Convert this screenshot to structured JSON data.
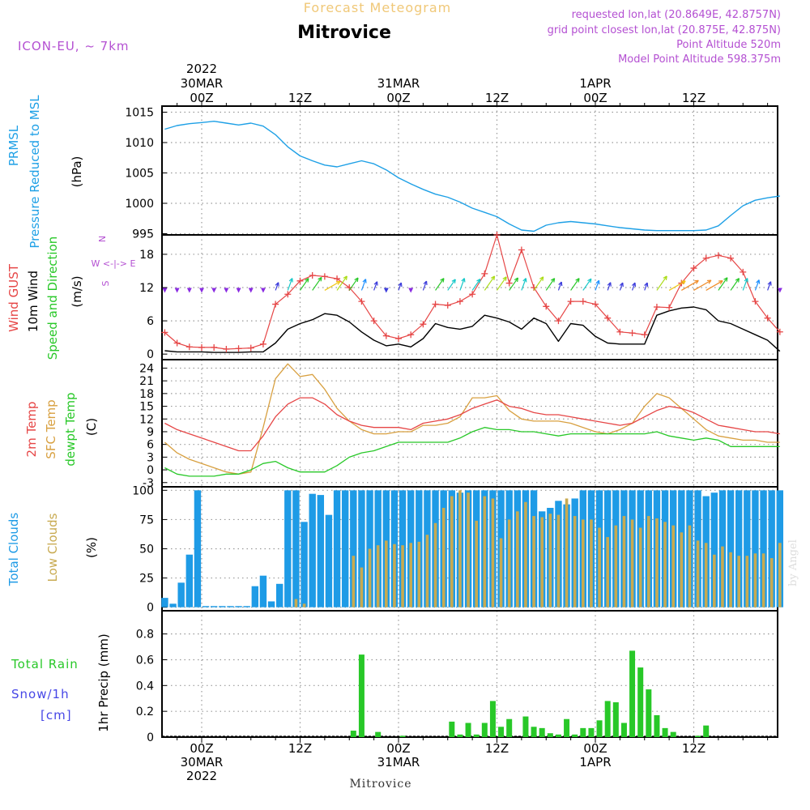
{
  "header": {
    "top_title": "Forecast Meteogram",
    "station": "Mitrovice",
    "model": "ICON-EU, ~ 7km",
    "requested": "requested lon,lat (20.8649E, 42.8757N)",
    "grid_point": "grid point closest lon,lat (20.875E, 42.875N)",
    "point_altitude": "Point Altitude 520m",
    "model_altitude": "Model Point Altitude 598.375m",
    "footer": "Mitrovice",
    "credit": "by Angel"
  },
  "time_axis": {
    "top_labels": [
      {
        "hour": 0,
        "lines": [
          "2022",
          "30MAR",
          "00Z"
        ]
      },
      {
        "hour": 12,
        "lines": [
          "12Z"
        ]
      },
      {
        "hour": 24,
        "lines": [
          "31MAR",
          "00Z"
        ]
      },
      {
        "hour": 36,
        "lines": [
          "12Z"
        ]
      },
      {
        "hour": 48,
        "lines": [
          "1APR",
          "00Z"
        ]
      },
      {
        "hour": 60,
        "lines": [
          "12Z"
        ]
      }
    ],
    "bottom_labels": [
      {
        "hour": 0,
        "lines": [
          "00Z",
          "30MAR",
          "2022"
        ]
      },
      {
        "hour": 12,
        "lines": [
          "12Z"
        ]
      },
      {
        "hour": 24,
        "lines": [
          "00Z",
          "31MAR"
        ]
      },
      {
        "hour": 36,
        "lines": [
          "12Z"
        ]
      },
      {
        "hour": 48,
        "lines": [
          "00Z",
          "1APR"
        ]
      },
      {
        "hour": 60,
        "lines": [
          "12Z"
        ]
      }
    ]
  },
  "panels": {
    "pressure": {
      "ylabels": [
        "PRMSL",
        "Pressure Reduced to MSL"
      ],
      "unit": "(hPa)"
    },
    "wind": {
      "ylabels": [
        "Wind GUST",
        "10m Wind",
        "Speed and Direction"
      ],
      "unit": "(m/s)",
      "compass": [
        "N",
        "W <-|-> E",
        "S"
      ]
    },
    "temp": {
      "ylabels": [
        "2m Temp",
        "SFC Temp",
        "dewpt Temp"
      ],
      "unit": "(C)"
    },
    "cloud": {
      "ylabels": [
        "Total Clouds",
        "Low Clouds"
      ],
      "unit": "(%)"
    },
    "precip": {
      "legend": [
        "Total  Rain",
        "Snow/1h",
        "[cm]"
      ],
      "ylabel": "1hr Precip (mm)"
    }
  },
  "colors": {
    "pressure": "#1ea0e6",
    "gust": "#e64646",
    "wind": "#000000",
    "temp": "#e64646",
    "sfc": "#d8a040",
    "dewpt": "#28c828",
    "total_cloud": "#1e9be6",
    "low_cloud": "#c8aa50",
    "rain": "#28c828",
    "snow": "#4646e6",
    "title": "#f0c878",
    "meta": "#b450d2"
  },
  "chart_data": [
    {
      "type": "line",
      "name": "pressure",
      "x_hours": [
        -4.5,
        -3,
        -1.5,
        0,
        1.5,
        3,
        4.5,
        6,
        7.5,
        9,
        10.5,
        12,
        13.5,
        15,
        16.5,
        18,
        19.5,
        21,
        22.5,
        24,
        25.5,
        27,
        28.5,
        30,
        31.5,
        33,
        34.5,
        36,
        37.5,
        39,
        40.5,
        42,
        43.5,
        45,
        46.5,
        48,
        49.5,
        51,
        52.5,
        54,
        55.5,
        57,
        58.5,
        60,
        61.5,
        63,
        64.5,
        66,
        67.5,
        69,
        70.5
      ],
      "series": [
        {
          "name": "PRMSL",
          "values": [
            1012.2,
            1012.8,
            1013.1,
            1013.3,
            1013.5,
            1013.2,
            1012.9,
            1013.2,
            1012.7,
            1011.3,
            1009.3,
            1007.8,
            1007.0,
            1006.3,
            1006.0,
            1006.5,
            1007.0,
            1006.5,
            1005.5,
            1004.2,
            1003.2,
            1002.3,
            1001.5,
            1001.0,
            1000.2,
            999.2,
            998.5,
            997.8,
            996.6,
            995.6,
            995.4,
            996.4,
            996.8,
            997.0,
            996.8,
            996.6,
            996.3,
            996.0,
            995.8,
            995.6,
            995.5,
            995.5,
            995.5,
            995.5,
            995.6,
            996.3,
            998.0,
            999.6,
            1000.5,
            1000.9,
            1001.2
          ]
        }
      ],
      "ylim": [
        994.8,
        1016
      ],
      "yticks": [
        995,
        1000,
        1005,
        1010,
        1015
      ]
    },
    {
      "type": "line",
      "name": "wind",
      "x_hours": [
        -4.5,
        -3,
        -1.5,
        0,
        1.5,
        3,
        4.5,
        6,
        7.5,
        9,
        10.5,
        12,
        13.5,
        15,
        16.5,
        18,
        19.5,
        21,
        22.5,
        24,
        25.5,
        27,
        28.5,
        30,
        31.5,
        33,
        34.5,
        36,
        37.5,
        39,
        40.5,
        42,
        43.5,
        45,
        46.5,
        48,
        49.5,
        51,
        52.5,
        54,
        55.5,
        57,
        58.5,
        60,
        61.5,
        63,
        64.5,
        66,
        67.5,
        69,
        70.5
      ],
      "series": [
        {
          "name": "Wind GUST",
          "values": [
            3.9,
            2.0,
            1.3,
            1.2,
            1.2,
            0.9,
            1.0,
            1.1,
            1.8,
            9.0,
            10.8,
            13.2,
            14.2,
            14.0,
            13.6,
            12.0,
            9.5,
            6.0,
            3.3,
            2.8,
            3.5,
            5.4,
            9.0,
            8.8,
            9.5,
            10.8,
            14.5,
            21.5,
            12.8,
            18.8,
            12.0,
            8.6,
            6.0,
            9.5,
            9.5,
            9.0,
            6.5,
            4.0,
            3.8,
            3.5,
            8.5,
            8.4,
            12.8,
            15.5,
            17.3,
            17.8,
            17.3,
            14.8,
            9.5,
            6.5,
            4.0
          ]
        },
        {
          "name": "10m Wind",
          "values": [
            0.6,
            0.4,
            0.4,
            0.4,
            0.3,
            0.3,
            0.3,
            0.4,
            0.4,
            2.0,
            4.5,
            5.5,
            6.2,
            7.3,
            7.0,
            5.8,
            4.0,
            2.5,
            1.5,
            1.8,
            1.3,
            2.8,
            5.5,
            4.8,
            4.5,
            5.0,
            7.0,
            6.5,
            5.8,
            4.5,
            6.5,
            5.5,
            2.3,
            5.5,
            5.2,
            3.2,
            2.0,
            1.8,
            1.8,
            1.8,
            7.0,
            7.8,
            8.3,
            8.5,
            8.0,
            6.0,
            5.5,
            4.5,
            3.5,
            2.5,
            0.5
          ]
        }
      ],
      "ylim": [
        -1,
        21.5
      ],
      "yticks": [
        0,
        6,
        12,
        18
      ]
    },
    {
      "type": "line",
      "name": "temperature",
      "x_hours": [
        -4.5,
        -3,
        -1.5,
        0,
        1.5,
        3,
        4.5,
        6,
        7.5,
        9,
        10.5,
        12,
        13.5,
        15,
        16.5,
        18,
        19.5,
        21,
        22.5,
        24,
        25.5,
        27,
        28.5,
        30,
        31.5,
        33,
        34.5,
        36,
        37.5,
        39,
        40.5,
        42,
        43.5,
        45,
        46.5,
        48,
        49.5,
        51,
        52.5,
        54,
        55.5,
        57,
        58.5,
        60,
        61.5,
        63,
        64.5,
        66,
        67.5,
        69,
        70.5
      ],
      "series": [
        {
          "name": "2m Temp",
          "values": [
            11.0,
            9.5,
            8.5,
            7.5,
            6.5,
            5.5,
            4.5,
            4.5,
            8.0,
            12.5,
            15.5,
            17.0,
            17.0,
            15.5,
            13.0,
            11.5,
            10.5,
            10.0,
            10.0,
            10.0,
            9.5,
            11.0,
            11.5,
            12.0,
            13.0,
            14.5,
            15.5,
            16.5,
            15.0,
            14.5,
            13.5,
            13.0,
            13.0,
            12.5,
            12.0,
            11.5,
            11.0,
            10.5,
            11.0,
            12.5,
            14.0,
            15.0,
            14.5,
            13.5,
            12.0,
            10.5,
            10.0,
            9.5,
            9.0,
            9.0,
            8.5
          ]
        },
        {
          "name": "SFC Temp",
          "values": [
            6.5,
            4.0,
            2.5,
            1.5,
            0.5,
            -0.5,
            -1.0,
            -0.5,
            10.0,
            21.5,
            25.0,
            22.0,
            22.5,
            19.0,
            14.5,
            11.5,
            9.5,
            8.5,
            8.5,
            9.0,
            9.0,
            10.5,
            10.5,
            11.0,
            12.5,
            17.0,
            17.0,
            17.5,
            14.0,
            12.0,
            11.5,
            11.5,
            11.5,
            11.0,
            10.0,
            9.0,
            8.5,
            9.5,
            11.0,
            15.0,
            18.0,
            17.0,
            14.5,
            12.0,
            9.5,
            8.0,
            7.5,
            7.0,
            7.0,
            6.5,
            6.5
          ]
        },
        {
          "name": "dewpt Temp",
          "values": [
            0.5,
            -1.0,
            -1.5,
            -1.5,
            -1.5,
            -1.0,
            -1.0,
            0.0,
            1.5,
            2.0,
            0.5,
            -0.5,
            -0.5,
            -0.5,
            1.0,
            3.0,
            4.0,
            4.5,
            5.5,
            6.5,
            6.5,
            6.5,
            6.5,
            6.5,
            7.5,
            9.0,
            10.0,
            9.5,
            9.5,
            9.0,
            9.0,
            8.5,
            8.0,
            8.5,
            8.5,
            8.5,
            8.5,
            8.5,
            8.5,
            8.5,
            9.0,
            8.0,
            7.5,
            7.0,
            7.5,
            7.0,
            5.5,
            5.5,
            5.5,
            5.5,
            5.5
          ]
        }
      ],
      "ylim": [
        -4,
        26
      ],
      "yticks": [
        -3,
        0,
        3,
        6,
        9,
        12,
        15,
        18,
        21,
        24
      ]
    },
    {
      "type": "bar",
      "name": "clouds",
      "x_hours": [
        -4.5,
        -3.5,
        -2.5,
        -1.5,
        -0.5,
        0.5,
        1.5,
        2.5,
        3.5,
        4.5,
        5.5,
        6.5,
        7.5,
        8.5,
        9.5,
        10.5,
        11.5,
        12.5,
        13.5,
        14.5,
        15.5,
        16.5,
        17.5,
        18.5,
        19.5,
        20.5,
        21.5,
        22.5,
        23.5,
        24.5,
        25.5,
        26.5,
        27.5,
        28.5,
        29.5,
        30.5,
        31.5,
        32.5,
        33.5,
        34.5,
        35.5,
        36.5,
        37.5,
        38.5,
        39.5,
        40.5,
        41.5,
        42.5,
        43.5,
        44.5,
        45.5,
        46.5,
        47.5,
        48.5,
        49.5,
        50.5,
        51.5,
        52.5,
        53.5,
        54.5,
        55.5,
        56.5,
        57.5,
        58.5,
        59.5,
        60.5,
        61.5,
        62.5,
        63.5,
        64.5,
        65.5,
        66.5,
        67.5,
        68.5,
        69.5,
        70.5
      ],
      "series": [
        {
          "name": "Total Clouds",
          "values": [
            8,
            3,
            21,
            45,
            100,
            1,
            1,
            1,
            1,
            1,
            1,
            18,
            27,
            5,
            20,
            100,
            100,
            73,
            97,
            96,
            79,
            100,
            100,
            100,
            100,
            100,
            100,
            100,
            100,
            100,
            100,
            100,
            100,
            100,
            100,
            100,
            98,
            100,
            100,
            100,
            100,
            100,
            100,
            100,
            100,
            100,
            82,
            85,
            91,
            88,
            93,
            100,
            100,
            100,
            100,
            100,
            100,
            100,
            100,
            100,
            100,
            100,
            100,
            100,
            100,
            100,
            95,
            98,
            100,
            100,
            100,
            100,
            100,
            100,
            100,
            100
          ]
        },
        {
          "name": "Low Clouds",
          "values": [
            0,
            0,
            0,
            0,
            0,
            0,
            0,
            0,
            0,
            0,
            0,
            0,
            0,
            0,
            0,
            0,
            7,
            3,
            0,
            0,
            0,
            0,
            0,
            44,
            34,
            50,
            53,
            57,
            54,
            53,
            55,
            56,
            62,
            72,
            85,
            95,
            100,
            98,
            74,
            95,
            93,
            59,
            75,
            82,
            90,
            78,
            77,
            80,
            79,
            93,
            78,
            75,
            75,
            68,
            60,
            70,
            78,
            75,
            68,
            78,
            76,
            73,
            70,
            64,
            70,
            57,
            55,
            45,
            52,
            47,
            44,
            44,
            46,
            46,
            42,
            55
          ]
        }
      ],
      "ylim": [
        -3,
        103
      ],
      "yticks": [
        0,
        25,
        50,
        75,
        100
      ]
    },
    {
      "type": "bar",
      "name": "precipitation",
      "x_hours": [
        13.5,
        14.5,
        15.5,
        16.5,
        17.5,
        18.5,
        19.5,
        20.5,
        21.5,
        22.5,
        23.5,
        24.5,
        25.5,
        26.5,
        27.5,
        28.5,
        29.5,
        30.5,
        31.5,
        32.5,
        33.5,
        34.5,
        35.5,
        36.5,
        37.5,
        38.5,
        39.5,
        40.5,
        41.5,
        42.5,
        43.5,
        44.5,
        45.5,
        46.5,
        47.5,
        48.5,
        49.5,
        50.5,
        51.5,
        52.5,
        53.5,
        54.5,
        55.5,
        56.5,
        57.5,
        58.5,
        59.5,
        60.5,
        61.5,
        62.5,
        63.5
      ],
      "series": [
        {
          "name": "Total Rain",
          "values": [
            0,
            0,
            0,
            0,
            0,
            0.05,
            0.64,
            0,
            0.04,
            0,
            0,
            0.01,
            0,
            0,
            0,
            0,
            0,
            0.12,
            0.02,
            0.11,
            0.02,
            0.11,
            0.28,
            0.08,
            0.14,
            0,
            0.16,
            0.08,
            0.07,
            0.03,
            0.02,
            0.14,
            0.02,
            0.07,
            0.07,
            0.13,
            0.28,
            0.27,
            0.11,
            0.67,
            0.54,
            0.37,
            0.17,
            0.07,
            0.04,
            0,
            0,
            0.01,
            0.09,
            0,
            0
          ]
        }
      ],
      "ylim": [
        0,
        0.98
      ],
      "yticks": [
        0,
        0.2,
        0.4,
        0.6,
        0.8
      ]
    }
  ]
}
